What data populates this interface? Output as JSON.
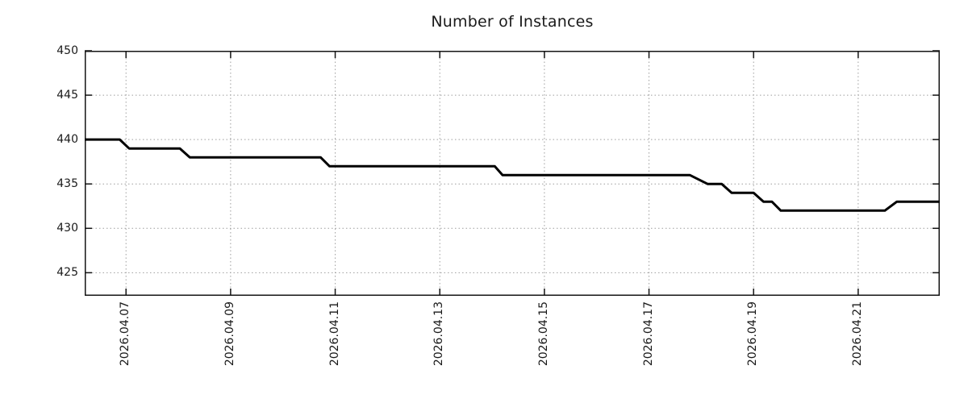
{
  "chart_data": {
    "type": "line",
    "title": "Number of Instances",
    "legend": false,
    "grid": true,
    "x_axis": {
      "unit": "date (day of April 2026)",
      "tick_days": [
        7,
        9,
        11,
        13,
        15,
        17,
        19,
        21
      ],
      "tick_labels": [
        "2026.04.07",
        "2026.04.09",
        "2026.04.11",
        "2026.04.13",
        "2026.04.15",
        "2026.04.17",
        "2026.04.19",
        "2026.04.21"
      ],
      "range_days": [
        6.21,
        22.56
      ]
    },
    "y_axis": {
      "ticks": [
        425,
        430,
        435,
        440,
        445,
        450
      ],
      "range": [
        422.4,
        450
      ]
    },
    "series": [
      {
        "name": "Number of Instances",
        "color": "#000000",
        "line_width": 3,
        "points": [
          [
            6.21,
            440
          ],
          [
            6.88,
            440
          ],
          [
            7.06,
            439
          ],
          [
            8.03,
            439
          ],
          [
            8.22,
            438
          ],
          [
            10.72,
            438
          ],
          [
            10.89,
            437
          ],
          [
            14.05,
            437
          ],
          [
            14.2,
            436
          ],
          [
            17.78,
            436
          ],
          [
            18.12,
            435
          ],
          [
            18.39,
            435
          ],
          [
            18.58,
            434
          ],
          [
            19.0,
            434
          ],
          [
            19.19,
            433
          ],
          [
            19.35,
            433
          ],
          [
            19.52,
            432
          ],
          [
            21.51,
            432
          ],
          [
            21.74,
            433
          ],
          [
            22.56,
            433
          ]
        ]
      }
    ],
    "colors": {
      "border": "#141414",
      "grid": "#9e9e9e",
      "text": "#1a1a1a",
      "background": "#ffffff"
    }
  }
}
